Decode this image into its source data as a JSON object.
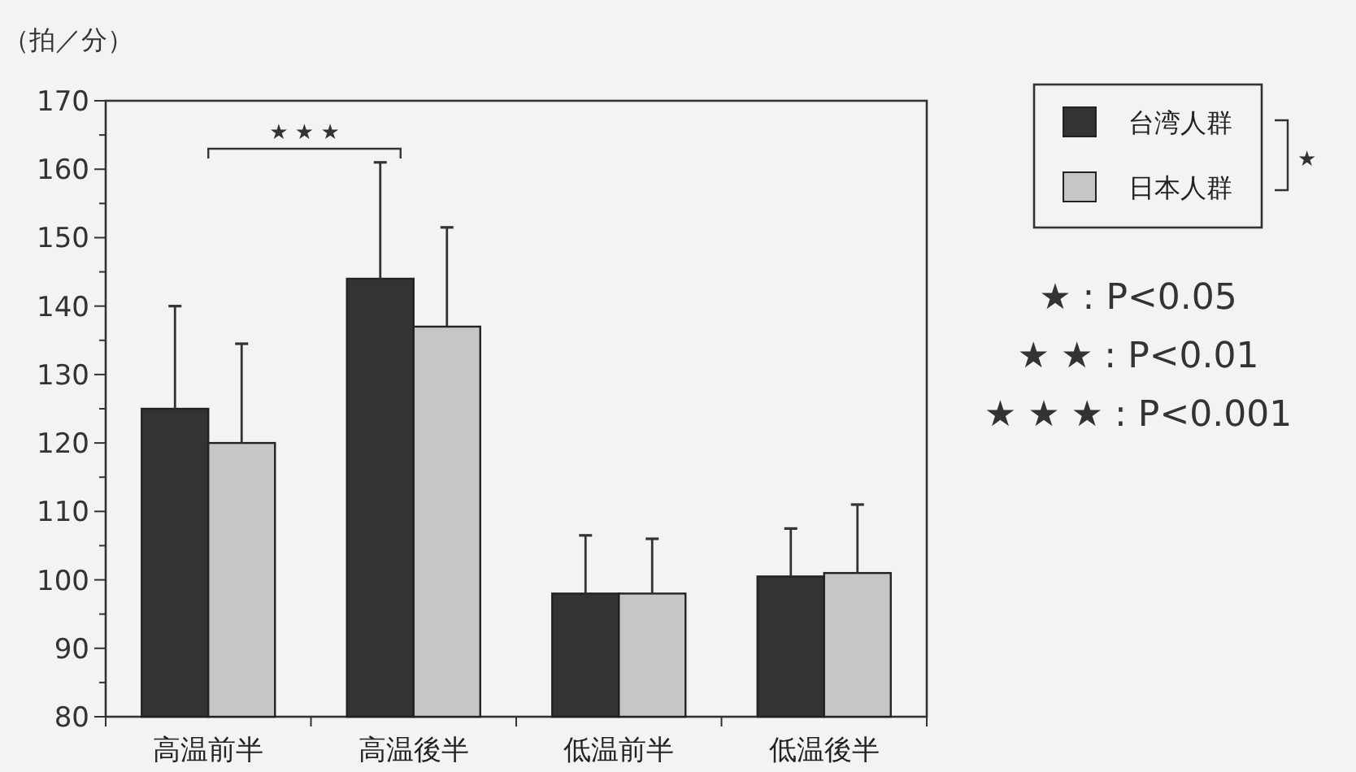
{
  "chart_data": {
    "type": "bar",
    "ylabel": "（拍／分）",
    "categories": [
      "高温前半",
      "高温後半",
      "低温前半",
      "低温後半"
    ],
    "series": [
      {
        "name": "台湾人群",
        "color": "#333333",
        "values": [
          125,
          144,
          98,
          100.5
        ],
        "errors": [
          [
            125,
            140
          ],
          [
            144,
            161
          ],
          [
            98,
            106.5
          ],
          [
            100.5,
            107.5
          ]
        ]
      },
      {
        "name": "日本人群",
        "color": "#c6c6c6",
        "values": [
          120,
          137,
          98,
          101
        ],
        "errors": [
          [
            120,
            134.5
          ],
          [
            137,
            151.5
          ],
          [
            98,
            106
          ],
          [
            101,
            111
          ]
        ]
      }
    ],
    "ylim": [
      80,
      170
    ],
    "yticks": [
      80,
      {
        "value": 85,
        "label": null
      },
      90,
      {
        "value": 95,
        "label": null
      },
      100,
      {
        "value": 105,
        "label": null
      },
      110,
      {
        "value": 115,
        "label": null
      },
      120,
      {
        "value": 125,
        "label": null
      },
      130,
      {
        "value": 135,
        "label": null
      },
      140,
      {
        "value": 145,
        "label": null
      },
      150,
      {
        "value": 155,
        "label": null
      },
      160,
      {
        "value": 165,
        "label": null
      },
      170
    ],
    "grid": false,
    "legend": "top right",
    "annotations": [
      "★ ★ ★",
      "★",
      "★ : P<0.05",
      "★ ★ : P<0.01",
      "★ ★ ★ : P<0.001"
    ]
  }
}
